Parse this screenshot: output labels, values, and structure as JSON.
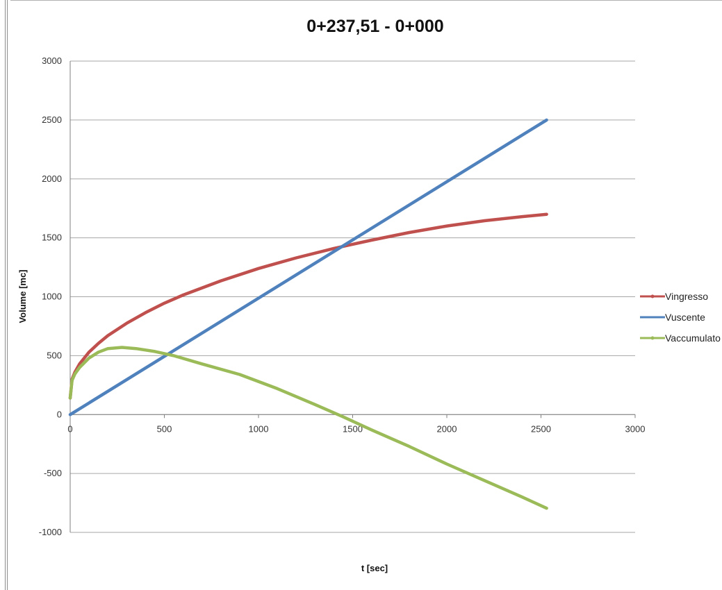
{
  "chart_data": {
    "type": "line",
    "title": "0+237,51 - 0+000",
    "xlabel": "t [sec]",
    "ylabel": "Volume [mc]",
    "xlim": [
      0,
      3000
    ],
    "ylim": [
      -1000,
      3000
    ],
    "x_ticks": [
      "0",
      "500",
      "1000",
      "1500",
      "2000",
      "2500",
      "3000"
    ],
    "y_ticks": [
      "3000",
      "2500",
      "2000",
      "1500",
      "1000",
      "500",
      "0",
      "-500",
      "-1000"
    ],
    "grid": "horizontal",
    "legend_position": "right",
    "series": [
      {
        "name": "Vingresso",
        "color": "#c0504d",
        "x": [
          0,
          10,
          25,
          50,
          100,
          150,
          200,
          300,
          400,
          500,
          600,
          800,
          1000,
          1200,
          1400,
          1600,
          1800,
          2000,
          2200,
          2400,
          2530
        ],
        "y": [
          140,
          300,
          360,
          430,
          530,
          605,
          670,
          775,
          865,
          945,
          1015,
          1135,
          1240,
          1330,
          1410,
          1480,
          1545,
          1600,
          1645,
          1680,
          1700
        ]
      },
      {
        "name": "Vuscente",
        "color": "#4f81bd",
        "x": [
          0,
          2530
        ],
        "y": [
          0,
          2500
        ]
      },
      {
        "name": "Vaccumulato",
        "color": "#9bbb59",
        "x": [
          0,
          10,
          25,
          50,
          100,
          150,
          200,
          275,
          350,
          450,
          550,
          700,
          900,
          1100,
          1300,
          1450,
          1600,
          1800,
          2000,
          2200,
          2400,
          2530
        ],
        "y": [
          140,
          290,
          345,
          400,
          480,
          530,
          560,
          570,
          560,
          535,
          500,
          430,
          340,
          220,
          85,
          -20,
          -130,
          -270,
          -420,
          -560,
          -700,
          -795
        ]
      }
    ]
  }
}
